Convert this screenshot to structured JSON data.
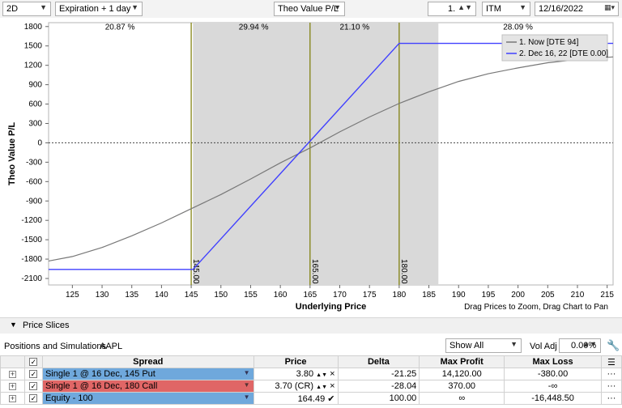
{
  "toolbar": {
    "view_mode": "2D",
    "time_offset": "Expiration + 1 day",
    "y_metric": "Theo Value P/L",
    "quantity": "1.",
    "moneyness": "ITM",
    "date": "12/16/2022"
  },
  "chart_data": {
    "type": "line",
    "xlabel": "Underlying Price",
    "ylabel": "Theo Value P/L",
    "xlim": [
      121,
      216
    ],
    "ylim": [
      -2200,
      1860
    ],
    "x_ticks": [
      125,
      130,
      135,
      140,
      145,
      150,
      155,
      160,
      165,
      170,
      175,
      180,
      185,
      190,
      195,
      200,
      205,
      210,
      215
    ],
    "y_ticks": [
      -2100,
      -1800,
      -1500,
      -1200,
      -900,
      -600,
      -300,
      0,
      300,
      600,
      900,
      1200,
      1500,
      1800
    ],
    "zone_percents": [
      {
        "label": "20.87 %",
        "x": 133
      },
      {
        "label": "29.94 %",
        "x": 155.5
      },
      {
        "label": "21.10 %",
        "x": 172.5
      },
      {
        "label": "28.09 %",
        "x": 200
      }
    ],
    "shaded_range": [
      145.3,
      186.6
    ],
    "vertical_lines": [
      {
        "x": 145.0,
        "label": "145.00"
      },
      {
        "x": 165.0,
        "label": "165.00"
      },
      {
        "x": 180.0,
        "label": "180.00"
      }
    ],
    "series": [
      {
        "name": "1. Now [DTE 94]",
        "color": "#777777",
        "x": [
          121,
          125,
          130,
          135,
          140,
          145,
          150,
          155,
          160,
          165,
          170,
          175,
          180,
          185,
          190,
          195,
          200,
          205,
          210,
          216
        ],
        "y": [
          -1830,
          -1760,
          -1620,
          -1440,
          -1240,
          -1020,
          -800,
          -560,
          -310,
          -80,
          170,
          400,
          610,
          790,
          950,
          1070,
          1160,
          1240,
          1290,
          1330
        ]
      },
      {
        "name": "2. Dec 16, 22 [DTE 0.00]",
        "color": "#4040ff",
        "x": [
          121,
          145.3,
          180,
          216
        ],
        "y": [
          -1960,
          -1960,
          1540,
          1540
        ]
      }
    ],
    "hint": "Drag Prices to Zoom, Drag Chart to Pan"
  },
  "price_slices": {
    "label": "Price Slices"
  },
  "positions": {
    "title": "Positions and Simulations",
    "symbol": "AAPL",
    "filter": "Show All",
    "vol_adj_label": "Vol Adj",
    "vol_adj_value": "0.00%"
  },
  "table": {
    "headers": [
      "Spread",
      "Price",
      "Delta",
      "Max Profit",
      "Max Loss"
    ],
    "rows": [
      {
        "spread": "Single 1 @ 16 Dec, 145 Put",
        "price": "3.80",
        "delta": "-21.25",
        "max_profit": "14,120.00",
        "max_loss": "-380.00",
        "color": "#6fa8dc",
        "mark": "×"
      },
      {
        "spread": "Single 1 @ 16 Dec, 180 Call",
        "price": "3.70 (CR)",
        "delta": "-28.04",
        "max_profit": "370.00",
        "max_loss": "-∞",
        "color": "#e06666",
        "mark": "×"
      },
      {
        "spread": "Equity - 100",
        "price": "164.49",
        "delta": "100.00",
        "max_profit": "∞",
        "max_loss": "-16,448.50",
        "color": "#6fa8dc",
        "mark": "✔"
      }
    ]
  }
}
